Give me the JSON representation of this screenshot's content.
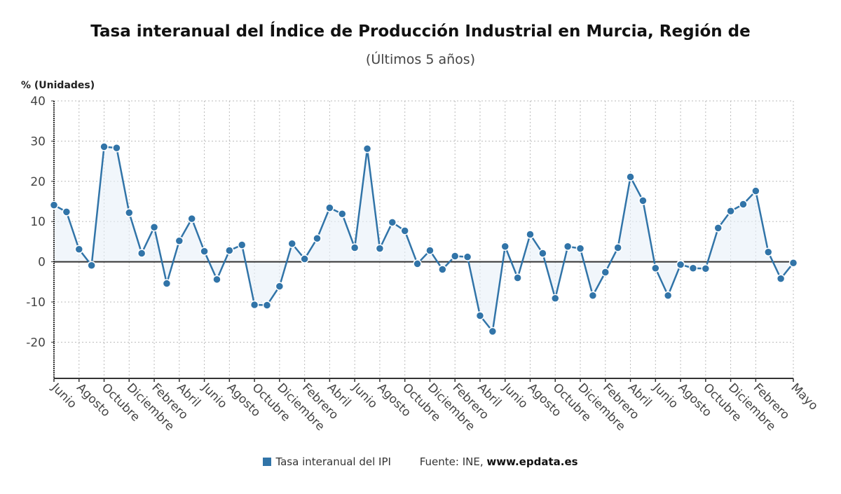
{
  "chart_data": {
    "type": "line",
    "title": "Tasa interanual del Índice de Producción Industrial en Murcia, Región de",
    "subtitle": "(Últimos 5 años)",
    "ylabel": "% (Unidades)",
    "ylim": [
      -29,
      40
    ],
    "yticks": [
      40,
      30,
      20,
      10,
      0,
      -10,
      -20
    ],
    "grid": true,
    "area_fill": true,
    "legend_position": "bottom",
    "x_tick_labels": [
      "Junio",
      "Agosto",
      "Octubre",
      "Diciembre",
      "Febrero",
      "Abril",
      "Junio",
      "Agosto",
      "Octubre",
      "Diciembre",
      "Febrero",
      "Abril",
      "Junio",
      "Agosto",
      "Octubre",
      "Diciembre",
      "Febrero",
      "Abril",
      "Junio",
      "Agosto",
      "Octubre",
      "Diciembre",
      "Febrero",
      "Abril",
      "Junio",
      "Agosto",
      "Octubre",
      "Diciembre",
      "Febrero",
      "Mayo"
    ],
    "series": [
      {
        "name": "Tasa interanual del IPI",
        "color": "#3174a8",
        "values": [
          14.1,
          12.4,
          3.1,
          -0.9,
          28.6,
          28.3,
          12.2,
          2.1,
          8.6,
          -5.4,
          5.2,
          10.7,
          2.6,
          -4.4,
          2.8,
          4.2,
          -10.7,
          -10.8,
          -6.1,
          4.5,
          0.7,
          5.8,
          13.4,
          11.9,
          3.5,
          28.1,
          3.3,
          9.8,
          7.7,
          -0.5,
          2.8,
          -1.9,
          1.4,
          1.2,
          -13.4,
          -17.3,
          3.8,
          -4.0,
          6.8,
          2.1,
          -9.1,
          3.8,
          3.3,
          -8.4,
          -2.6,
          3.5,
          21.1,
          15.2,
          -1.6,
          -8.4,
          -0.7,
          -1.6,
          -1.7,
          8.4,
          12.6,
          14.3,
          17.6,
          2.4,
          -4.2,
          -0.3
        ]
      }
    ]
  },
  "legend": {
    "series_label": "Tasa interanual del IPI",
    "source_prefix": "Fuente: INE, ",
    "source_site": "www.epdata.es"
  }
}
